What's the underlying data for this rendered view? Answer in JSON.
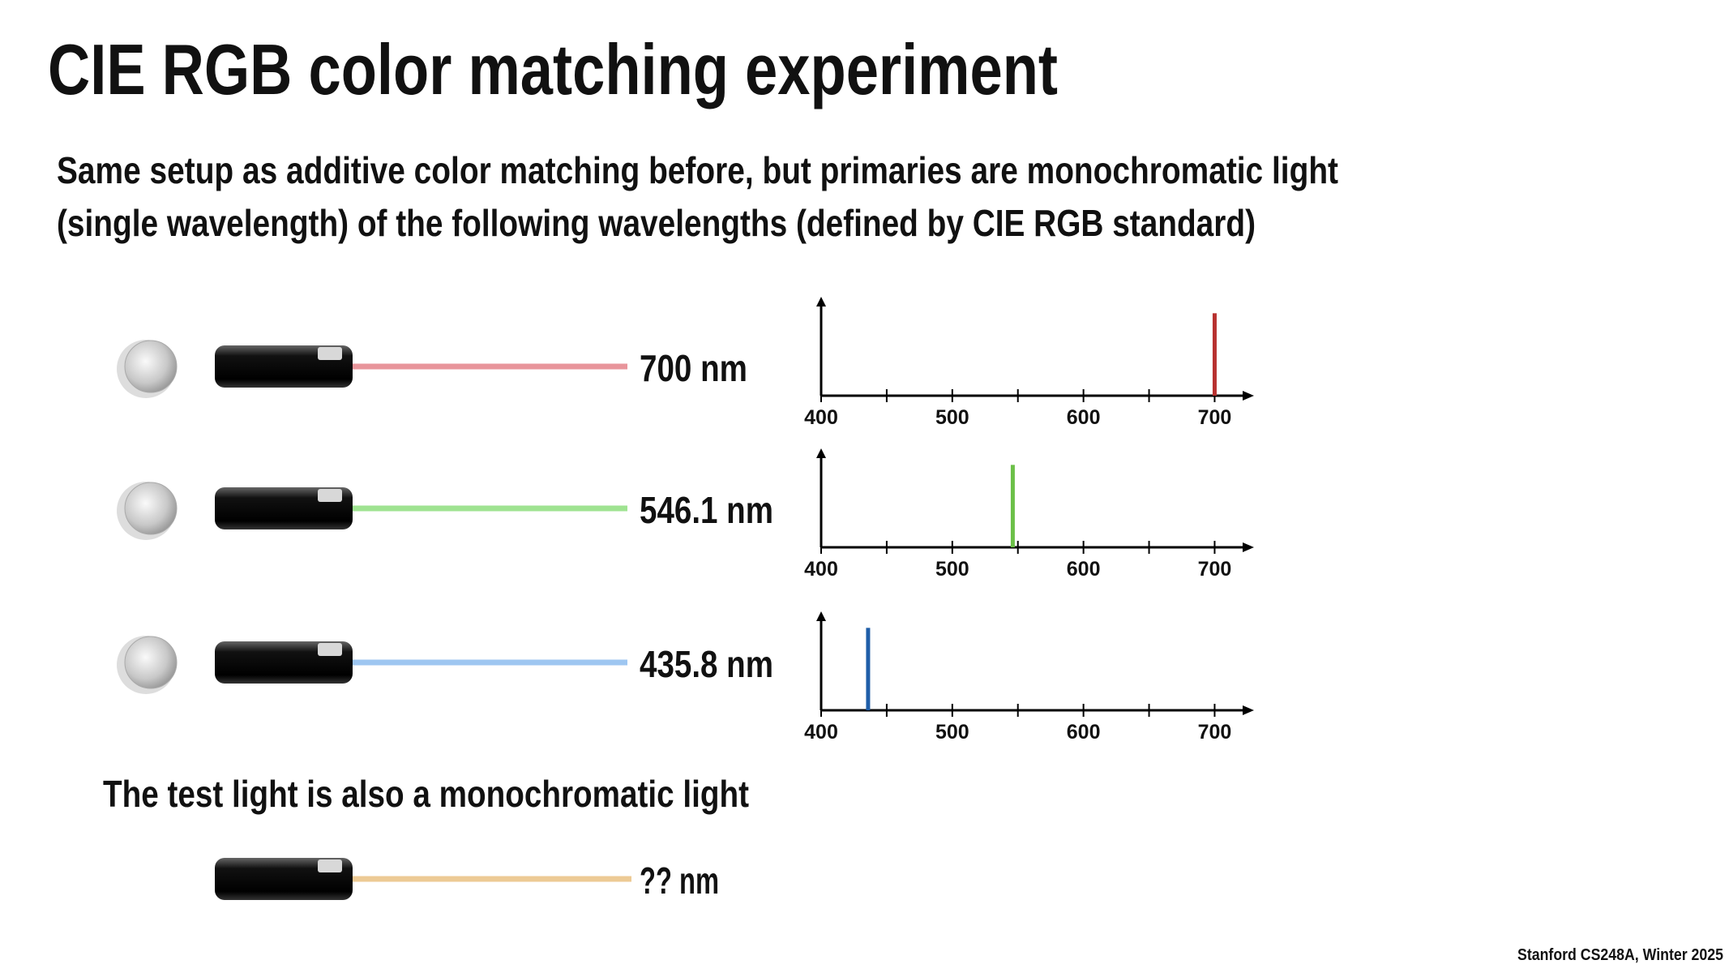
{
  "title": "CIE RGB color matching experiment",
  "subtitle": [
    "Same setup as additive color matching before, but primaries are monochromatic light",
    "(single wavelength) of the following wavelengths (defined by CIE RGB standard)"
  ],
  "sources": [
    {
      "label": "700 nm",
      "beam": "#e8959b"
    },
    {
      "label": "546.1 nm",
      "beam": "#9fe391"
    },
    {
      "label": "435.8 nm",
      "beam": "#9ec6f1"
    }
  ],
  "note": "The test light is also a monochromatic light",
  "test_source": {
    "label": "?? nm",
    "beam": "#edca95"
  },
  "footer": "Stanford CS248A, Winter 2025",
  "chart_data": [
    {
      "type": "bar",
      "x": [
        700
      ],
      "values": [
        1
      ],
      "color": "#b8312f",
      "xlim": [
        400,
        730
      ],
      "xticks": [
        400,
        500,
        600,
        700
      ],
      "xminor_ticks": [
        450,
        550,
        650
      ],
      "ylim": [
        0,
        1.2
      ]
    },
    {
      "type": "bar",
      "x": [
        546.1
      ],
      "values": [
        1
      ],
      "color": "#6cc048",
      "xlim": [
        400,
        730
      ],
      "xticks": [
        400,
        500,
        600,
        700
      ],
      "xminor_ticks": [
        450,
        550,
        650
      ],
      "ylim": [
        0,
        1.2
      ]
    },
    {
      "type": "bar",
      "x": [
        435.8
      ],
      "values": [
        1
      ],
      "color": "#1f5ea8",
      "xlim": [
        400,
        730
      ],
      "xticks": [
        400,
        500,
        600,
        700
      ],
      "xminor_ticks": [
        450,
        550,
        650
      ],
      "ylim": [
        0,
        1.2
      ]
    }
  ]
}
